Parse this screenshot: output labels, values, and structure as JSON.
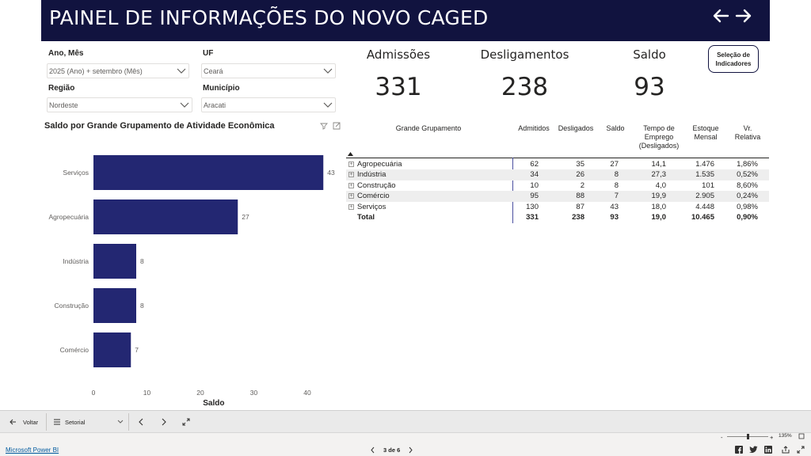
{
  "header": {
    "title": "PAINEL DE INFORMAÇÕES DO NOVO CAGED",
    "back_icon": "arrow-left-icon",
    "forward_icon": "arrow-right-icon"
  },
  "filters": {
    "ano_mes": {
      "label": "Ano, Mês",
      "value": "2025 (Ano) + setembro (Mês)"
    },
    "uf": {
      "label": "UF",
      "value": "Ceará"
    },
    "regiao": {
      "label": "Região",
      "value": "Nordeste"
    },
    "municipio": {
      "label": "Município",
      "value": "Aracati"
    }
  },
  "kpis": {
    "admissoes": {
      "label": "Admissões",
      "value": "331"
    },
    "desligamentos": {
      "label": "Desligamentos",
      "value": "238"
    },
    "saldo": {
      "label": "Saldo",
      "value": "93"
    }
  },
  "selection_button": {
    "line1": "Seleção de",
    "line2": "Indicadores"
  },
  "chart_data": {
    "type": "bar",
    "orientation": "horizontal",
    "title": "Saldo por Grande Grupamento de Atividade Econômica",
    "categories": [
      "Serviços",
      "Agropecuária",
      "Indústria",
      "Construção",
      "Comércio"
    ],
    "values": [
      43,
      27,
      8,
      8,
      7
    ],
    "xlabel": "Saldo",
    "xlim": [
      0,
      45
    ],
    "xticks": [
      "0",
      "10",
      "20",
      "30",
      "40"
    ],
    "bar_color": "#232772",
    "grid": false
  },
  "table": {
    "headers": {
      "grupamento": "Grande Grupamento",
      "admitidos": "Admitidos",
      "desligados": "Desligados",
      "saldo": "Saldo",
      "tempo_l1": "Tempo de",
      "tempo_l2": "Emprego",
      "tempo_l3": "(Desligados)",
      "estoque_l1": "Estoque",
      "estoque_l2": "Mensal",
      "vr_l1": "Vr.",
      "vr_l2": "Relativa"
    },
    "rows": [
      {
        "name": "Agropecuária",
        "admitidos": "62",
        "desligados": "35",
        "saldo": "27",
        "tempo": "14,1",
        "estoque": "1.476",
        "vr": "1,86%"
      },
      {
        "name": "Indústria",
        "admitidos": "34",
        "desligados": "26",
        "saldo": "8",
        "tempo": "27,3",
        "estoque": "1.535",
        "vr": "0,52%"
      },
      {
        "name": "Construção",
        "admitidos": "10",
        "desligados": "2",
        "saldo": "8",
        "tempo": "4,0",
        "estoque": "101",
        "vr": "8,60%"
      },
      {
        "name": "Comércio",
        "admitidos": "95",
        "desligados": "88",
        "saldo": "7",
        "tempo": "19,9",
        "estoque": "2.905",
        "vr": "0,24%"
      },
      {
        "name": "Serviços",
        "admitidos": "130",
        "desligados": "87",
        "saldo": "43",
        "tempo": "18,0",
        "estoque": "4.448",
        "vr": "0,98%"
      }
    ],
    "total": {
      "name": "Total",
      "admitidos": "331",
      "desligados": "238",
      "saldo": "93",
      "tempo": "19,0",
      "estoque": "10.465",
      "vr": "0,90%"
    }
  },
  "bottom_bar": {
    "back_label": "Voltar",
    "page_label": "Setorial"
  },
  "status_bar": {
    "brand": "Microsoft Power BI",
    "page_indicator": "3 de 6",
    "zoom": "135%"
  }
}
